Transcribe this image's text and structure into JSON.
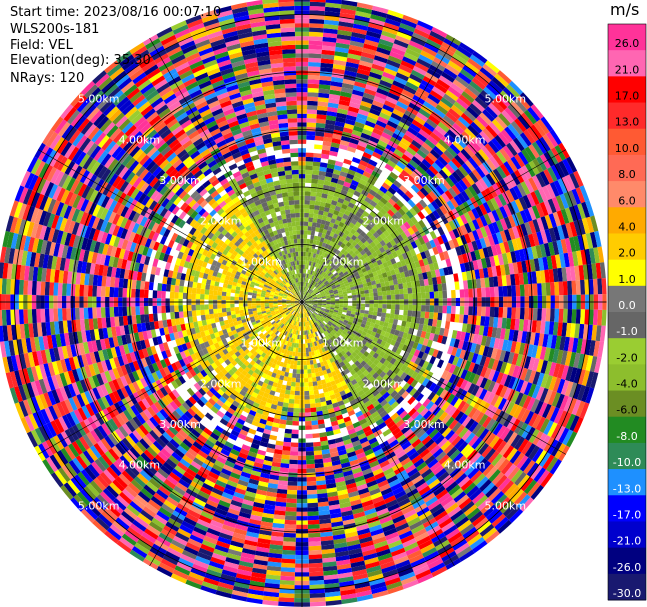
{
  "header": {
    "start_time": "Start time: 2023/08/16 00:07:10",
    "instrument": "WLS200s-181",
    "field": "Field: VEL",
    "elevation": "Elevation(deg): 35.30",
    "nrays": "NRays: 120"
  },
  "chart_data": {
    "type": "heatmap",
    "subtype": "polar PPI scan",
    "field": "VEL",
    "units": "m/s",
    "elevation_deg": 35.3,
    "n_rays": 120,
    "range_rings_km": [
      1.0,
      2.0,
      3.0,
      4.0,
      5.0
    ],
    "range_ring_labels": [
      "1.00km",
      "2.00km",
      "3.00km",
      "4.00km",
      "5.00km"
    ],
    "value_range": [
      -30.0,
      30.0
    ],
    "description_regions": [
      {
        "range_km": [
          0,
          2.2
        ],
        "bearing": "west/south-west",
        "typical_velocity": "approaching 2 to 4 m/s (yellow)"
      },
      {
        "range_km": [
          0,
          2.4
        ],
        "bearing": "north/east",
        "typical_velocity": "receding -2 to -4 m/s (olive green)"
      },
      {
        "range_km": [
          2.4,
          5.3
        ],
        "bearing": "all",
        "typical_velocity": "noise (random colors)"
      }
    ],
    "colorbar": {
      "title": "m/s",
      "tick_labels": [
        "26.0",
        "21.0",
        "17.0",
        "13.0",
        "10.0",
        "8.0",
        "6.0",
        "4.0",
        "2.0",
        "1.0",
        "0.0",
        "-1.0",
        "-2.0",
        "-4.0",
        "-6.0",
        "-8.0",
        "-10.0",
        "-13.0",
        "-17.0",
        "-21.0",
        "-26.0",
        "-30.0"
      ],
      "bins": [
        {
          "min": 26,
          "max": 30,
          "color": "#ff3399"
        },
        {
          "min": 21,
          "max": 26,
          "color": "#ff66b2"
        },
        {
          "min": 17,
          "max": 21,
          "color": "#ff0000"
        },
        {
          "min": 13,
          "max": 17,
          "color": "#ff2a2a"
        },
        {
          "min": 10,
          "max": 13,
          "color": "#ff5a33"
        },
        {
          "min": 8,
          "max": 10,
          "color": "#ff6a55"
        },
        {
          "min": 6,
          "max": 8,
          "color": "#ff8a6a"
        },
        {
          "min": 4,
          "max": 6,
          "color": "#ffaa00"
        },
        {
          "min": 2,
          "max": 4,
          "color": "#ffcc00"
        },
        {
          "min": 1,
          "max": 2,
          "color": "#ffff00"
        },
        {
          "min": 0,
          "max": 1,
          "color": "#777777"
        },
        {
          "min": -1,
          "max": 0,
          "color": "#666666"
        },
        {
          "min": -2,
          "max": -1,
          "color": "#9acd32"
        },
        {
          "min": -4,
          "max": -2,
          "color": "#8dbe2d"
        },
        {
          "min": -6,
          "max": -4,
          "color": "#6b8e23"
        },
        {
          "min": -8,
          "max": -6,
          "color": "#228b22"
        },
        {
          "min": -10,
          "max": -8,
          "color": "#2e8b57"
        },
        {
          "min": -13,
          "max": -10,
          "color": "#1e90ff"
        },
        {
          "min": -17,
          "max": -13,
          "color": "#0000ff"
        },
        {
          "min": -21,
          "max": -17,
          "color": "#0000cd"
        },
        {
          "min": -26,
          "max": -21,
          "color": "#000080"
        },
        {
          "min": -30,
          "max": -26,
          "color": "#191970"
        }
      ]
    }
  }
}
